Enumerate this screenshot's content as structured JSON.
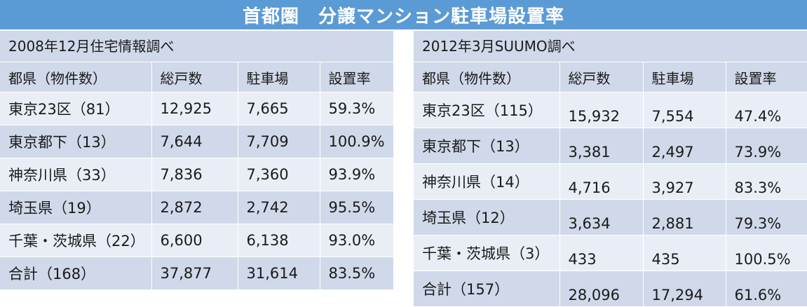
{
  "title": "首都圏　分譲マンション駐車場設置率",
  "colors": {
    "title_bg": "#5b9bd5",
    "row_dark": "#cfd9e9",
    "row_light": "#e9eef6",
    "title_text": "#ffffff"
  },
  "left": {
    "source": "2008年12月住宅情報調べ",
    "headers": [
      "都県（物件数）",
      "総戸数",
      "駐車場",
      "設置率"
    ],
    "rows": [
      [
        "東京23区（81）",
        "12,925",
        "7,665",
        "59.3%"
      ],
      [
        "東京都下（13）",
        "7,644",
        "7,709",
        "100.9%"
      ],
      [
        "神奈川県（33）",
        "7,836",
        "7,360",
        "93.9%"
      ],
      [
        "埼玉県（19）",
        "2,872",
        "2,742",
        "95.5%"
      ],
      [
        "千葉・茨城県（22）",
        "6,600",
        "6,138",
        "93.0%"
      ],
      [
        "合計（168）",
        "37,877",
        "31,614",
        "83.5%"
      ]
    ]
  },
  "right": {
    "source": "2012年3月SUUMO調べ",
    "headers": [
      "都県（物件数）",
      "総戸数",
      "駐車場",
      "設置率"
    ],
    "rows": [
      [
        "東京23区（115）",
        "15,932",
        "7,554",
        "47.4%"
      ],
      [
        "東京都下（13）",
        "3,381",
        "2,497",
        "73.9%"
      ],
      [
        "神奈川県（14）",
        "4,716",
        "3,927",
        "83.3%"
      ],
      [
        "埼玉県（12）",
        "3,634",
        "2,881",
        "79.3%"
      ],
      [
        "千葉・茨城県（3）",
        "433",
        "435",
        "100.5%"
      ],
      [
        "合計（157）",
        "28,096",
        "17,294",
        "61.6%"
      ]
    ]
  }
}
